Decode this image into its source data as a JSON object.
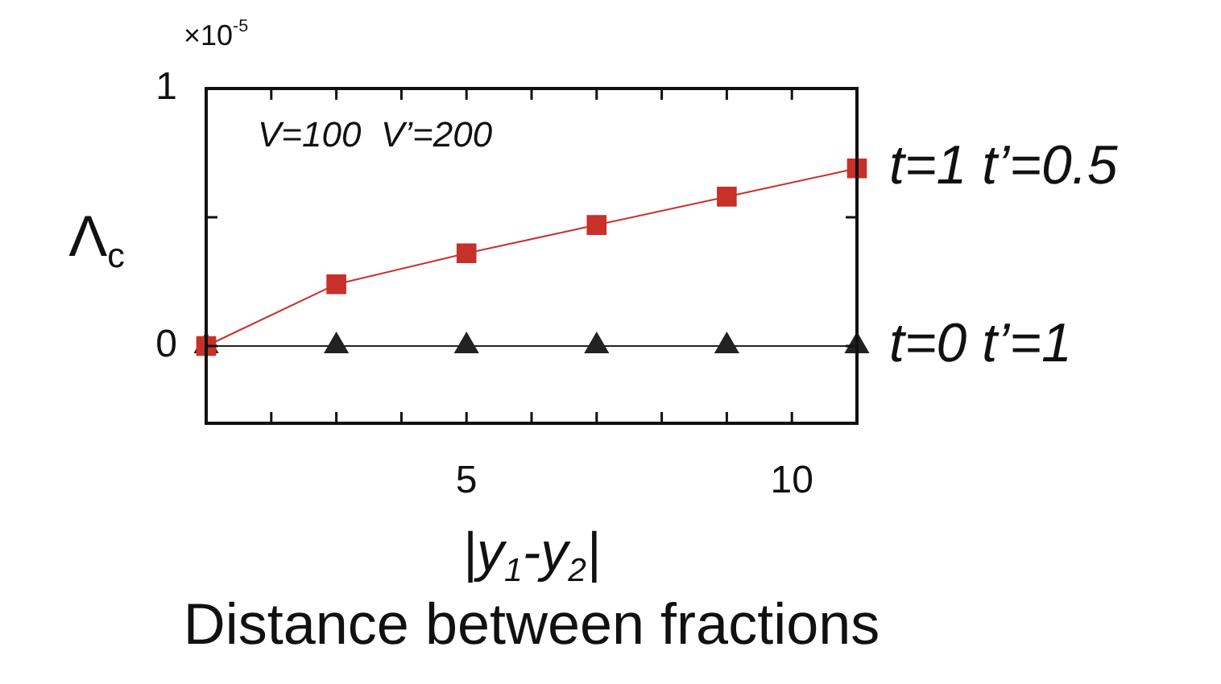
{
  "chart_data": {
    "type": "line",
    "xlabel": "|y$_{1}$-y$_{2}$|",
    "ylabel": "Λ$_{c}$",
    "annotations": [
      "×10$^{-5}$",
      "V=100  V’=200",
      "Distance between fractions"
    ],
    "x": [
      1,
      3,
      5,
      7,
      9,
      11
    ],
    "series": [
      {
        "name": "t=1 t’=0.5",
        "color": "#c8302a",
        "marker": "square",
        "values": [
          0,
          0.24,
          0.36,
          0.47,
          0.58,
          0.69
        ]
      },
      {
        "name": "t=0 t’=1",
        "color": "#222222",
        "marker": "triangle",
        "values": [
          0,
          0,
          0,
          0,
          0,
          0
        ]
      }
    ],
    "xlim": [
      1,
      11
    ],
    "xticks": [
      {
        "value": 1,
        "label": null
      },
      {
        "value": 2,
        "label": null
      },
      {
        "value": 3,
        "label": null
      },
      {
        "value": 4,
        "label": null
      },
      5,
      {
        "value": 6,
        "label": null
      },
      {
        "value": 7,
        "label": null
      },
      {
        "value": 8,
        "label": null
      },
      {
        "value": 9,
        "label": null
      },
      10,
      {
        "value": 11,
        "label": null
      }
    ],
    "ylim": [
      -0.3,
      1
    ],
    "yticks": [
      0,
      {
        "value": 0.5,
        "label": null
      },
      1
    ],
    "grid": false,
    "legend": false
  }
}
